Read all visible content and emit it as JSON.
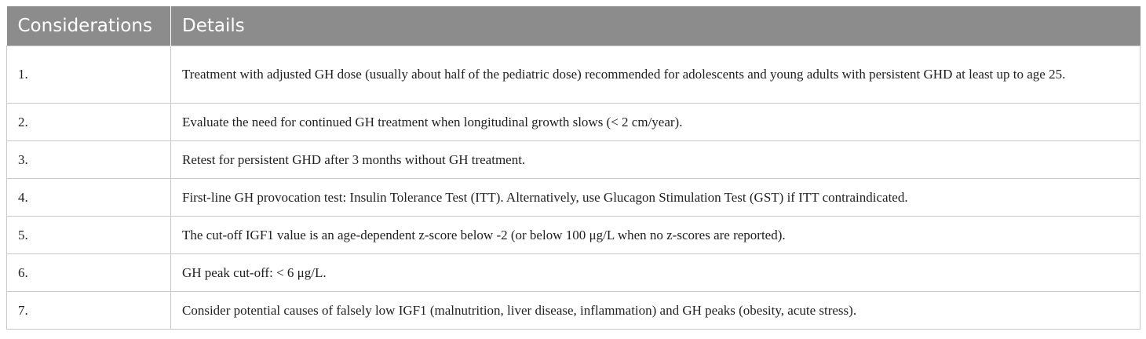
{
  "table": {
    "headers": [
      "Considerations",
      "Details"
    ],
    "rows": [
      {
        "num": "1.",
        "detail": "Treatment with adjusted GH dose (usually about half of the pediatric dose) recommended for adolescents and young adults with persistent GHD at least up to age 25."
      },
      {
        "num": "2.",
        "detail": "Evaluate the need for continued GH treatment when longitudinal growth slows (< 2 cm/year)."
      },
      {
        "num": "3.",
        "detail": "Retest for persistent GHD after 3 months without GH treatment."
      },
      {
        "num": "4.",
        "detail": "First-line GH provocation test: Insulin Tolerance Test (ITT). Alternatively, use Glucagon Stimulation Test (GST) if ITT contraindicated."
      },
      {
        "num": "5.",
        "detail": "The cut-off IGF1 value is an age-dependent z-score below -2 (or below 100 μg/L when no z-scores are reported)."
      },
      {
        "num": "6.",
        "detail": "GH peak cut-off: < 6 μg/L."
      },
      {
        "num": "7.",
        "detail": "Consider potential causes of falsely low IGF1 (malnutrition, liver disease, inflammation) and GH peaks (obesity, acute stress)."
      }
    ]
  },
  "colors": {
    "header_bg": "#8c8c8c",
    "header_text": "#ffffff",
    "border": "#c8c8c8"
  }
}
